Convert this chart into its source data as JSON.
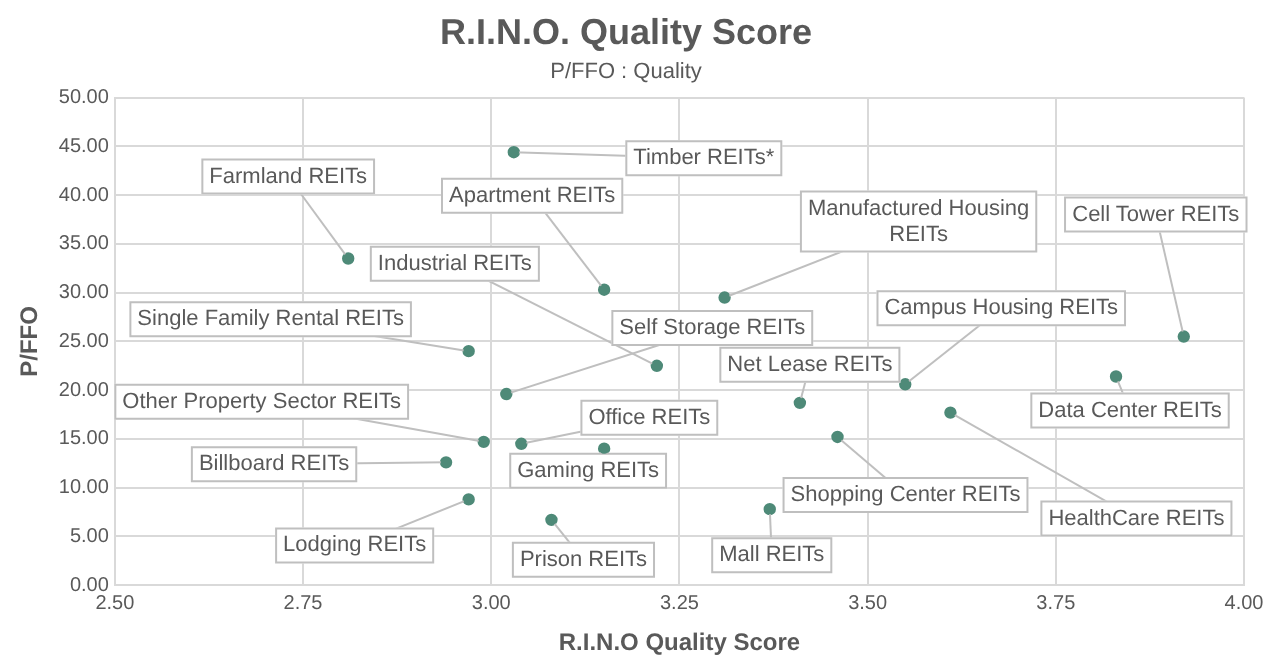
{
  "chart_data": {
    "type": "scatter",
    "title": "R.I.N.O. Quality Score",
    "subtitle": "P/FFO : Quality",
    "xlabel": "R.I.N.O Quality Score",
    "ylabel": "P/FFO",
    "x": [
      3.03,
      2.81,
      3.15,
      3.22,
      2.97,
      3.02,
      3.31,
      3.92,
      3.55,
      3.41,
      3.83,
      3.61,
      3.46,
      3.37,
      2.99,
      3.04,
      3.15,
      2.94,
      2.97,
      3.08
    ],
    "series": [
      {
        "color": "#4e8a78",
        "values": [
          44.4,
          33.5,
          30.3,
          22.5,
          24.0,
          19.6,
          29.5,
          25.5,
          20.6,
          18.7,
          21.4,
          17.7,
          15.2,
          7.8,
          14.7,
          14.5,
          14.0,
          12.6,
          8.8,
          6.7
        ]
      }
    ],
    "xlim": [
      2.5,
      4.0
    ],
    "xticks": [
      {
        "value": 2.5,
        "label": "2.50"
      },
      {
        "value": 2.75,
        "label": "2.75"
      },
      {
        "value": 3.0,
        "label": "3.00"
      },
      {
        "value": 3.25,
        "label": "3.25"
      },
      {
        "value": 3.5,
        "label": "3.50"
      },
      {
        "value": 3.75,
        "label": "3.75"
      },
      {
        "value": 4.0,
        "label": "4.00"
      }
    ],
    "ylim": [
      0,
      50
    ],
    "yticks": [
      {
        "value": 0,
        "label": "0.00"
      },
      {
        "value": 5,
        "label": "5.00"
      },
      {
        "value": 10,
        "label": "10.00"
      },
      {
        "value": 15,
        "label": "15.00"
      },
      {
        "value": 20,
        "label": "20.00"
      },
      {
        "value": 25,
        "label": "25.00"
      },
      {
        "value": 30,
        "label": "30.00"
      },
      {
        "value": 35,
        "label": "35.00"
      },
      {
        "value": 40,
        "label": "40.00"
      },
      {
        "value": 45,
        "label": "45.00"
      },
      {
        "value": 50,
        "label": "50.00"
      }
    ],
    "grid": true,
    "legend": false,
    "marker": "circle",
    "annotations": [
      {
        "text": "Timber REITs*",
        "x": 3.03,
        "y": 44.4
      },
      {
        "text": "Farmland REITs",
        "x": 2.81,
        "y": 33.5
      },
      {
        "text": "Apartment REITs",
        "x": 3.15,
        "y": 30.3
      },
      {
        "text": "Industrial REITs",
        "x": 3.22,
        "y": 22.5
      },
      {
        "text": "Single Family Rental REITs",
        "x": 2.97,
        "y": 24.0
      },
      {
        "text": "Self Storage REITs",
        "x": 3.02,
        "y": 19.6
      },
      {
        "text": "Manufactured Housing REITs",
        "x": 3.31,
        "y": 29.5
      },
      {
        "text": "Cell Tower REITs",
        "x": 3.92,
        "y": 25.5
      },
      {
        "text": "Campus Housing REITs",
        "x": 3.55,
        "y": 20.6
      },
      {
        "text": "Net Lease REITs",
        "x": 3.41,
        "y": 18.7
      },
      {
        "text": "Data Center REITs",
        "x": 3.83,
        "y": 21.4
      },
      {
        "text": "HealthCare REITs",
        "x": 3.61,
        "y": 17.7
      },
      {
        "text": "Shopping Center REITs",
        "x": 3.46,
        "y": 15.2
      },
      {
        "text": "Mall REITs",
        "x": 3.37,
        "y": 7.8
      },
      {
        "text": "Other Property Sector REITs",
        "x": 2.99,
        "y": 14.7
      },
      {
        "text": "Office REITs",
        "x": 3.04,
        "y": 14.5
      },
      {
        "text": "Gaming REITs",
        "x": 3.15,
        "y": 14.0
      },
      {
        "text": "Billboard REITs",
        "x": 2.94,
        "y": 12.6
      },
      {
        "text": "Lodging REITs",
        "x": 2.97,
        "y": 8.8
      },
      {
        "text": "Prison REITs",
        "x": 3.08,
        "y": 6.7
      }
    ]
  }
}
